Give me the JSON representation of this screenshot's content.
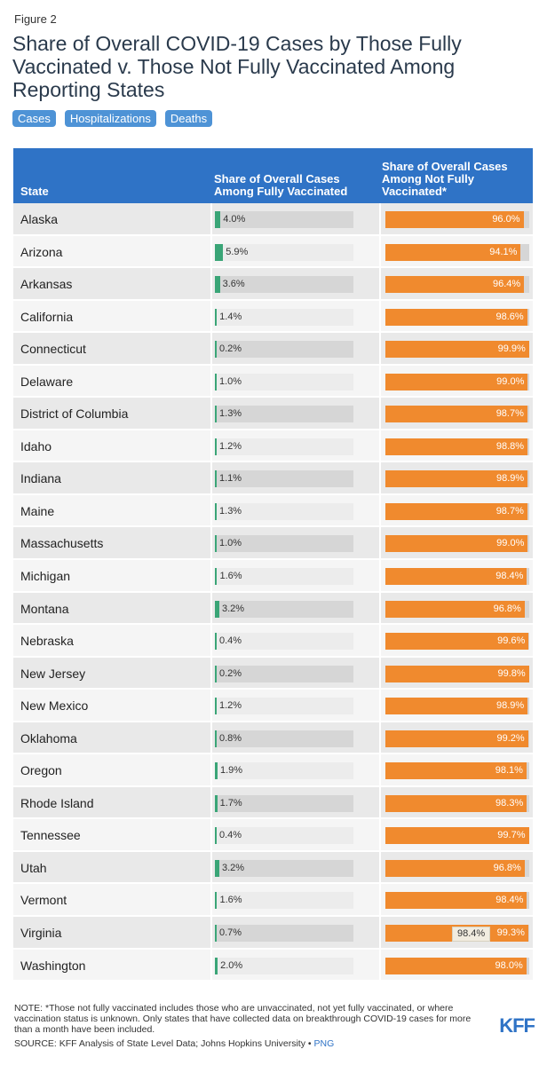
{
  "figure_label": "Figure 2",
  "title": "Share of Overall COVID-19 Cases by Those Fully Vaccinated v. Those Not Fully Vaccinated Among Reporting States",
  "tabs": [
    "Cases",
    "Hospitalizations",
    "Deaths"
  ],
  "colors": {
    "header": "#2f73c6",
    "vaccinated": "#3aa577",
    "not_vaccinated": "#f08a2e",
    "tab": "#4e93d6"
  },
  "chart_data": {
    "type": "table",
    "columns": [
      "State",
      "Share of Overall Cases Among Fully Vaccinated",
      "Share of Overall Cases Among Not Fully Vaccinated*"
    ],
    "rows": [
      {
        "state": "Alaska",
        "vaccinated": "4.0%",
        "not_vaccinated": "96.0%"
      },
      {
        "state": "Arizona",
        "vaccinated": "5.9%",
        "not_vaccinated": "94.1%"
      },
      {
        "state": "Arkansas",
        "vaccinated": "3.6%",
        "not_vaccinated": "96.4%"
      },
      {
        "state": "California",
        "vaccinated": "1.4%",
        "not_vaccinated": "98.6%"
      },
      {
        "state": "Connecticut",
        "vaccinated": "0.2%",
        "not_vaccinated": "99.9%"
      },
      {
        "state": "Delaware",
        "vaccinated": "1.0%",
        "not_vaccinated": "99.0%"
      },
      {
        "state": "District of Columbia",
        "vaccinated": "1.3%",
        "not_vaccinated": "98.7%"
      },
      {
        "state": "Idaho",
        "vaccinated": "1.2%",
        "not_vaccinated": "98.8%"
      },
      {
        "state": "Indiana",
        "vaccinated": "1.1%",
        "not_vaccinated": "98.9%"
      },
      {
        "state": "Maine",
        "vaccinated": "1.3%",
        "not_vaccinated": "98.7%"
      },
      {
        "state": "Massachusetts",
        "vaccinated": "1.0%",
        "not_vaccinated": "99.0%"
      },
      {
        "state": "Michigan",
        "vaccinated": "1.6%",
        "not_vaccinated": "98.4%"
      },
      {
        "state": "Montana",
        "vaccinated": "3.2%",
        "not_vaccinated": "96.8%"
      },
      {
        "state": "Nebraska",
        "vaccinated": "0.4%",
        "not_vaccinated": "99.6%"
      },
      {
        "state": "New Jersey",
        "vaccinated": "0.2%",
        "not_vaccinated": "99.8%"
      },
      {
        "state": "New Mexico",
        "vaccinated": "1.2%",
        "not_vaccinated": "98.9%"
      },
      {
        "state": "Oklahoma",
        "vaccinated": "0.8%",
        "not_vaccinated": "99.2%"
      },
      {
        "state": "Oregon",
        "vaccinated": "1.9%",
        "not_vaccinated": "98.1%"
      },
      {
        "state": "Rhode Island",
        "vaccinated": "1.7%",
        "not_vaccinated": "98.3%"
      },
      {
        "state": "Tennessee",
        "vaccinated": "0.4%",
        "not_vaccinated": "99.7%"
      },
      {
        "state": "Utah",
        "vaccinated": "3.2%",
        "not_vaccinated": "96.8%"
      },
      {
        "state": "Vermont",
        "vaccinated": "1.6%",
        "not_vaccinated": "98.4%"
      },
      {
        "state": "Virginia",
        "vaccinated": "0.7%",
        "not_vaccinated": "99.3%",
        "tooltip": "98.4%"
      },
      {
        "state": "Washington",
        "vaccinated": "2.0%",
        "not_vaccinated": "98.0%"
      }
    ]
  },
  "note": "NOTE: *Those not fully vaccinated includes those who are unvaccinated, not yet fully vaccinated, or where vaccination status is unknown. Only states that have collected data on breakthrough COVID-19 cases for more than a month have been included.",
  "source": "SOURCE: KFF Analysis of State Level Data; Johns Hopkins University •",
  "source_link": "PNG",
  "logo": "KFF"
}
